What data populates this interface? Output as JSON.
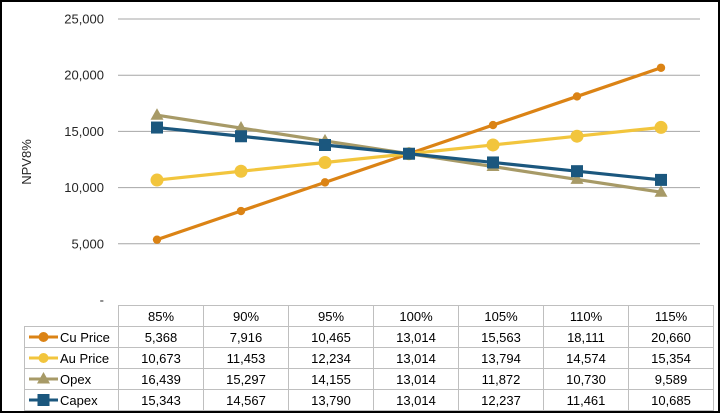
{
  "window": {
    "background": "#FFFFFF",
    "border_color": "#000000"
  },
  "chart_data": {
    "type": "line",
    "title": "",
    "xlabel": "",
    "ylabel": "NPV8%",
    "categories": [
      "85%",
      "90%",
      "95%",
      "100%",
      "105%",
      "110%",
      "115%"
    ],
    "series": [
      {
        "name": "Cu Price",
        "color": "#DB8315",
        "marker": "circle-small",
        "values": [
          5368,
          7916,
          10465,
          13014,
          15563,
          18111,
          20660
        ]
      },
      {
        "name": "Au Price",
        "color": "#F2C53D",
        "marker": "circle",
        "values": [
          10673,
          11453,
          12234,
          13014,
          13794,
          14574,
          15354
        ]
      },
      {
        "name": "Opex",
        "color": "#A79A67",
        "marker": "triangle",
        "values": [
          16439,
          15297,
          14155,
          13014,
          11872,
          10730,
          9589
        ]
      },
      {
        "name": "Capex",
        "color": "#1B577E",
        "marker": "square",
        "values": [
          15343,
          14567,
          13790,
          13014,
          12237,
          11461,
          10685
        ]
      }
    ],
    "ylim": [
      0,
      25000
    ],
    "y_ticks": [
      {
        "value": 25000,
        "label": "25,000"
      },
      {
        "value": 20000,
        "label": "20,000"
      },
      {
        "value": 15000,
        "label": "15,000"
      },
      {
        "value": 10000,
        "label": "10,000"
      },
      {
        "value": 5000,
        "label": "5,000"
      },
      {
        "value": 0,
        "label": "-"
      }
    ],
    "grid": true,
    "gridline_color": "#A6A6A6",
    "axis_text_color": "#262626",
    "legend_position": "data-table-left"
  },
  "table": {
    "border_color": "#BFBFBF",
    "column_headers": [
      "",
      "85%",
      "90%",
      "95%",
      "100%",
      "105%",
      "110%",
      "115%"
    ],
    "rows": [
      {
        "label": "Cu Price",
        "values": [
          "5,368",
          "7,916",
          "10,465",
          "13,014",
          "15,563",
          "18,111",
          "20,660"
        ]
      },
      {
        "label": "Au Price",
        "values": [
          "10,673",
          "11,453",
          "12,234",
          "13,014",
          "13,794",
          "14,574",
          "15,354"
        ]
      },
      {
        "label": "Opex",
        "values": [
          "16,439",
          "15,297",
          "14,155",
          "13,014",
          "11,872",
          "10,730",
          "9,589"
        ]
      },
      {
        "label": "Capex",
        "values": [
          "15,343",
          "14,567",
          "13,790",
          "13,014",
          "12,237",
          "11,461",
          "10,685"
        ]
      }
    ]
  }
}
